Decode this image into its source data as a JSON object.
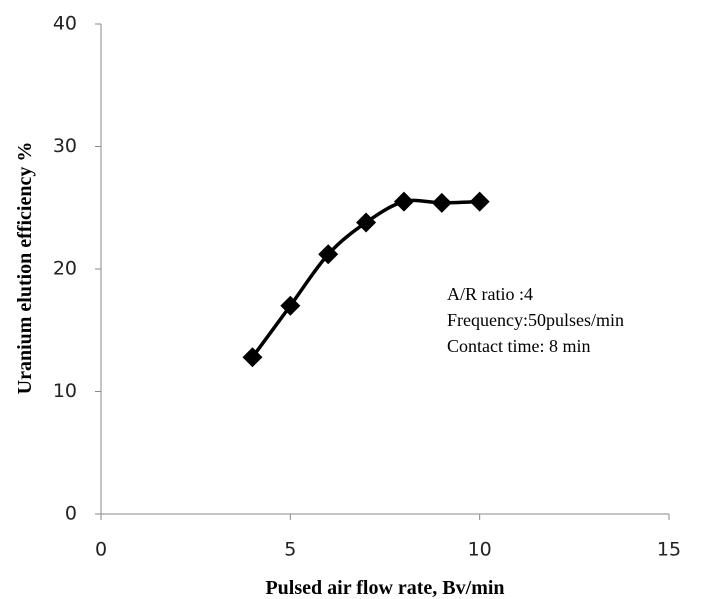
{
  "chart_data": {
    "type": "line",
    "x_label": "Pulsed air flow rate, Bv/min",
    "y_label": "Uranium  elution efficiency %",
    "x": [
      4,
      5,
      6,
      7,
      8,
      9,
      10
    ],
    "series": [
      {
        "color": "#000000",
        "values": [
          12.8,
          17,
          21.2,
          23.8,
          25.5,
          25.4,
          25.5
        ]
      }
    ],
    "xlim": [
      0,
      15
    ],
    "xticks": [
      0,
      5,
      10,
      15
    ],
    "ylim": [
      0,
      40
    ],
    "yticks": [
      0,
      10,
      20,
      30,
      40
    ],
    "grid": false,
    "annotations": [
      "A/R ratio :4",
      "Frequency:50pulses/min",
      "Contact time: 8 min"
    ]
  }
}
